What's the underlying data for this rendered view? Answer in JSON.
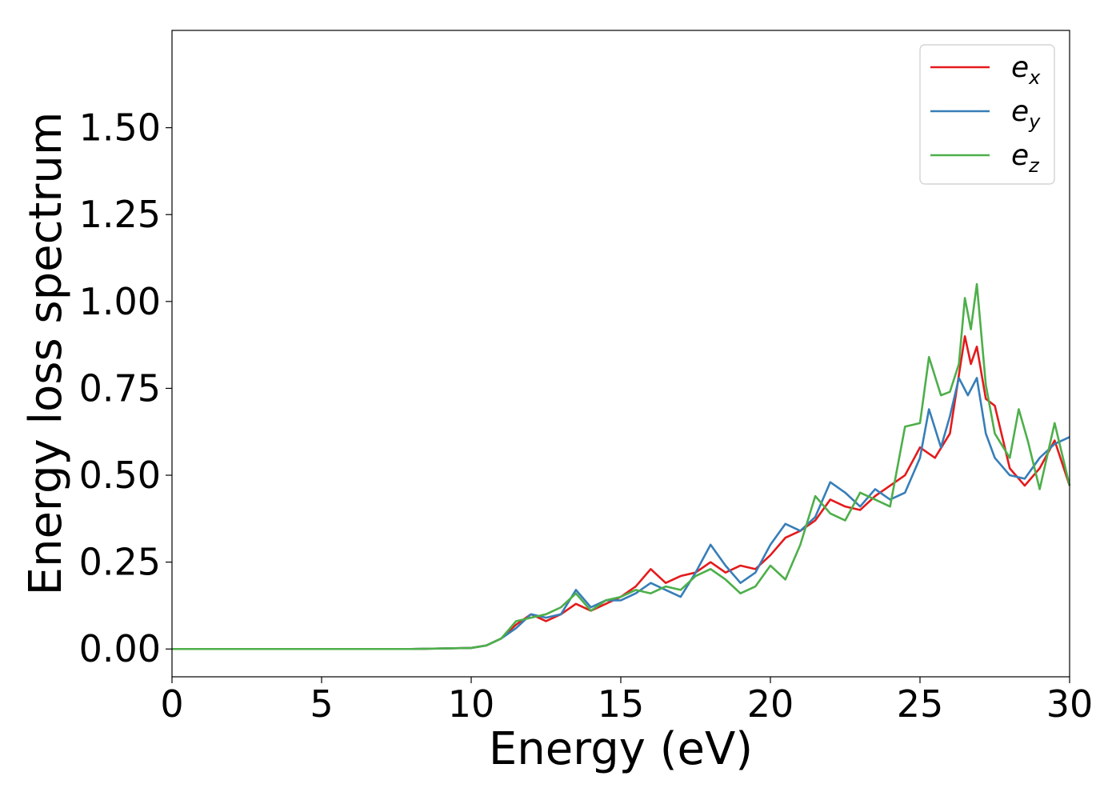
{
  "chart_data": {
    "type": "line",
    "title": "",
    "xlabel": "Energy (eV)",
    "ylabel": "Energy loss spectrum",
    "xlim": [
      0,
      30
    ],
    "ylim": [
      -0.08,
      1.78
    ],
    "xticks": [
      0,
      5,
      10,
      15,
      20,
      25,
      30
    ],
    "yticks": [
      "0.00",
      "0.25",
      "0.50",
      "0.75",
      "1.00",
      "1.25",
      "1.50"
    ],
    "grid": false,
    "legend_position": "top-right",
    "series": [
      {
        "name": "e_x",
        "label_base": "e",
        "label_sub": "x",
        "color": "#e41a1c",
        "x": [
          0,
          5,
          8,
          10,
          10.5,
          11,
          11.5,
          12,
          12.5,
          13,
          13.5,
          14,
          14.5,
          15,
          15.5,
          16,
          16.5,
          17,
          17.5,
          18,
          18.5,
          19,
          19.5,
          20,
          20.5,
          21,
          21.5,
          22,
          22.5,
          23,
          23.5,
          24,
          24.5,
          25,
          25.5,
          26,
          26.5,
          26.7,
          26.9,
          27.2,
          27.5,
          28,
          28.5,
          29,
          29.5,
          30
        ],
        "y": [
          0,
          0,
          0,
          0.003,
          0.01,
          0.03,
          0.07,
          0.1,
          0.08,
          0.1,
          0.13,
          0.11,
          0.13,
          0.15,
          0.18,
          0.23,
          0.19,
          0.21,
          0.22,
          0.25,
          0.22,
          0.24,
          0.23,
          0.27,
          0.32,
          0.34,
          0.37,
          0.43,
          0.41,
          0.4,
          0.44,
          0.47,
          0.5,
          0.58,
          0.55,
          0.62,
          0.9,
          0.82,
          0.87,
          0.72,
          0.7,
          0.52,
          0.47,
          0.52,
          0.6,
          0.47
        ]
      },
      {
        "name": "e_y",
        "label_base": "e",
        "label_sub": "y",
        "color": "#377eb8",
        "x": [
          0,
          5,
          8,
          10,
          10.5,
          11,
          11.5,
          12,
          12.5,
          13,
          13.5,
          14,
          14.5,
          15,
          15.5,
          16,
          16.5,
          17,
          17.5,
          18,
          18.5,
          19,
          19.5,
          20,
          20.5,
          21,
          21.5,
          22,
          22.5,
          23,
          23.5,
          24,
          24.5,
          25,
          25.3,
          25.7,
          26,
          26.3,
          26.6,
          26.9,
          27.2,
          27.5,
          28,
          28.5,
          29,
          29.5,
          30
        ],
        "y": [
          0,
          0,
          0,
          0.003,
          0.01,
          0.03,
          0.06,
          0.1,
          0.09,
          0.1,
          0.17,
          0.12,
          0.14,
          0.14,
          0.16,
          0.19,
          0.17,
          0.15,
          0.22,
          0.3,
          0.24,
          0.19,
          0.22,
          0.3,
          0.36,
          0.34,
          0.38,
          0.48,
          0.45,
          0.41,
          0.46,
          0.43,
          0.45,
          0.55,
          0.69,
          0.58,
          0.67,
          0.78,
          0.73,
          0.78,
          0.62,
          0.55,
          0.5,
          0.49,
          0.55,
          0.59,
          0.61
        ]
      },
      {
        "name": "e_z",
        "label_base": "e",
        "label_sub": "z",
        "color": "#4daf4a",
        "x": [
          0,
          5,
          8,
          10,
          10.5,
          11,
          11.5,
          12,
          12.5,
          13,
          13.5,
          14,
          14.5,
          15,
          15.5,
          16,
          16.5,
          17,
          17.5,
          18,
          18.5,
          19,
          19.5,
          20,
          20.5,
          21,
          21.5,
          22,
          22.5,
          23,
          23.5,
          24,
          24.5,
          25,
          25.3,
          25.7,
          26,
          26.3,
          26.5,
          26.7,
          26.9,
          27.2,
          27.5,
          28,
          28.3,
          28.6,
          29,
          29.5,
          30
        ],
        "y": [
          0,
          0,
          0,
          0.003,
          0.01,
          0.03,
          0.08,
          0.09,
          0.1,
          0.12,
          0.16,
          0.11,
          0.14,
          0.15,
          0.17,
          0.16,
          0.18,
          0.17,
          0.21,
          0.23,
          0.2,
          0.16,
          0.18,
          0.24,
          0.2,
          0.3,
          0.44,
          0.39,
          0.37,
          0.45,
          0.43,
          0.41,
          0.64,
          0.65,
          0.84,
          0.73,
          0.74,
          0.82,
          1.01,
          0.92,
          1.05,
          0.76,
          0.62,
          0.55,
          0.69,
          0.6,
          0.46,
          0.65,
          0.47
        ]
      }
    ]
  }
}
